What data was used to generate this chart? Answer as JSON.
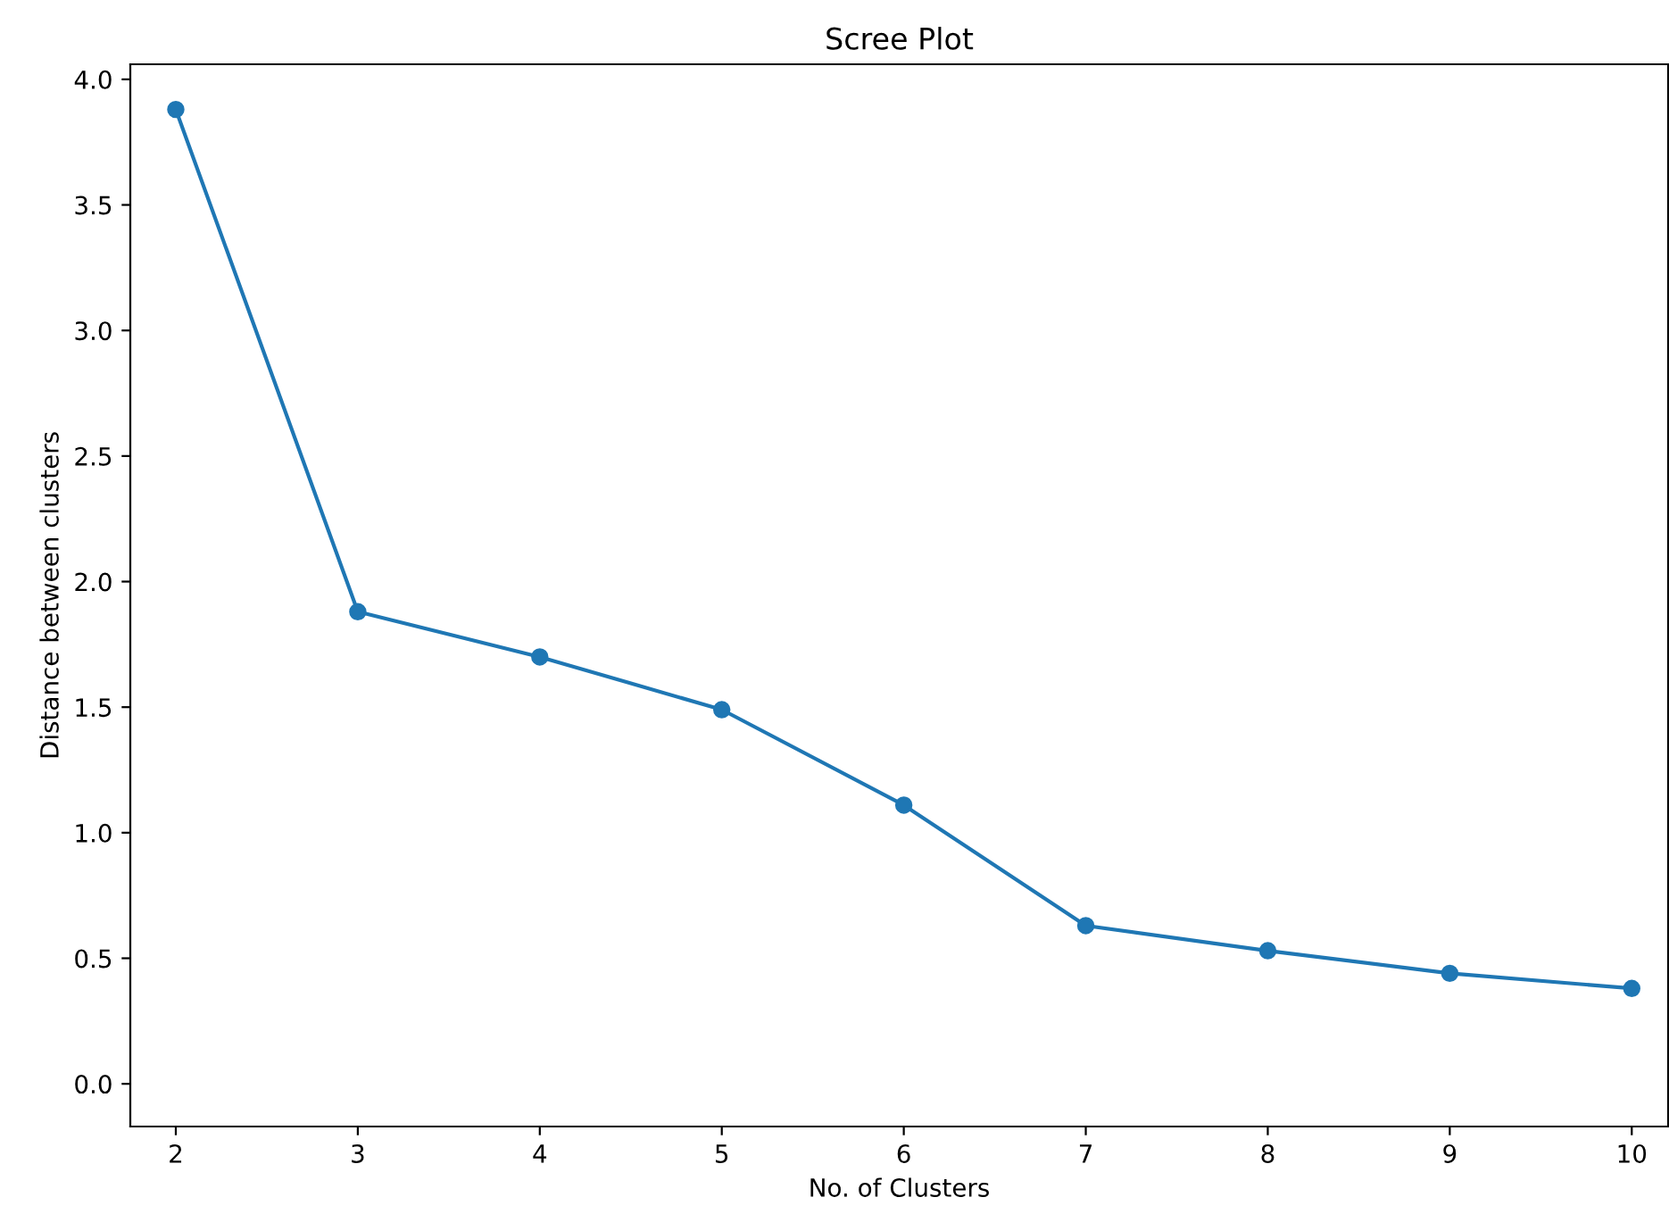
{
  "chart_data": {
    "type": "line",
    "title": "Scree Plot",
    "xlabel": "No. of Clusters",
    "ylabel": "Distance between clusters",
    "x": [
      2,
      3,
      4,
      5,
      6,
      7,
      8,
      9,
      10
    ],
    "series": [
      {
        "color": "#1f77b4",
        "values": [
          3.88,
          1.88,
          1.7,
          1.49,
          1.11,
          0.63,
          0.53,
          0.44,
          0.38
        ]
      }
    ],
    "xlim": [
      1.75,
      10.2
    ],
    "ylim": [
      -0.17,
      4.06
    ],
    "xticks": [
      2,
      3,
      4,
      5,
      6,
      7,
      8,
      9,
      10
    ],
    "yticks": [
      {
        "value": 0,
        "label": "0.0"
      },
      {
        "value": 0.5,
        "label": "0.5"
      },
      {
        "value": 1,
        "label": "1.0"
      },
      {
        "value": 1.5,
        "label": "1.5"
      },
      {
        "value": 2,
        "label": "2.0"
      },
      {
        "value": 2.5,
        "label": "2.5"
      },
      {
        "value": 3,
        "label": "3.0"
      },
      {
        "value": 3.5,
        "label": "3.5"
      },
      {
        "value": 4,
        "label": "4.0"
      }
    ],
    "marker": "circle",
    "line_style": "solid",
    "grid": false,
    "legend": false
  }
}
